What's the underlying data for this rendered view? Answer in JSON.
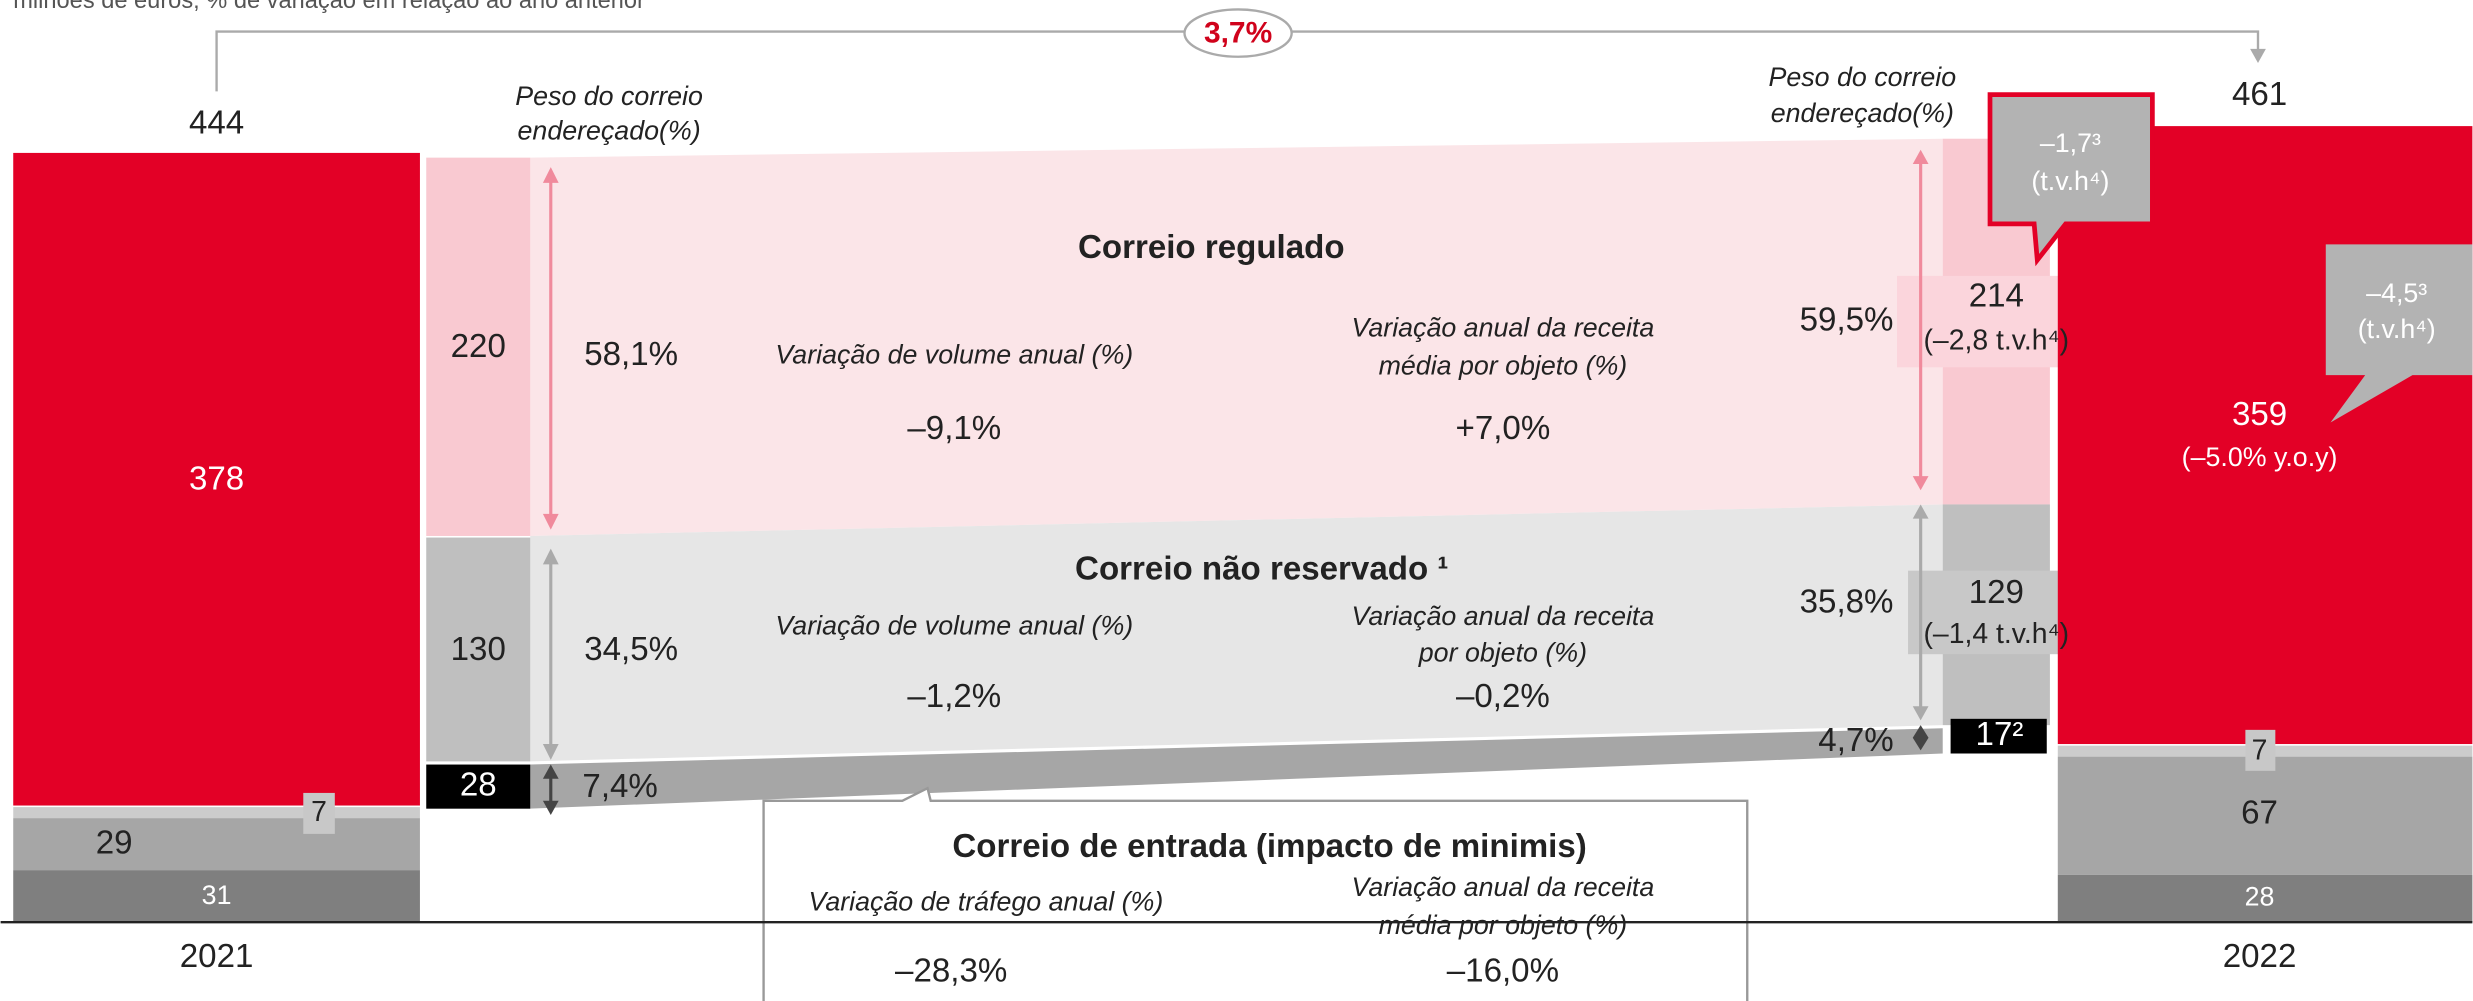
{
  "subtitle": "milhões de euros; % de variação em relação ao ano anterior",
  "growth": "3,7%",
  "weight_header": [
    "Peso do correio",
    "endereçado(%)"
  ],
  "y2021": {
    "year": "2021",
    "total": "444",
    "red": "378",
    "badge": "7",
    "gray": "29",
    "dark": "31"
  },
  "y2022": {
    "year": "2022",
    "total": "461",
    "red": "359",
    "red_note": "(–5.0% y.o.y)",
    "badge": "7",
    "gray": "67",
    "dark": "28",
    "callout_regulated": [
      "–1,7³",
      "(t.v.h⁴)"
    ],
    "callout_total": [
      "–4,5³",
      "(t.v.h⁴)"
    ]
  },
  "left": {
    "regulated": "220",
    "regulated_pct": "58,1%",
    "nonreserved": "130",
    "nonreserved_pct": "34,5%",
    "inbound": "28",
    "inbound_pct": "7,4%"
  },
  "right": {
    "regulated": "214",
    "regulated_note": "(–2,8 t.v.h⁴)",
    "regulated_pct": "59,5%",
    "nonreserved": "129",
    "nonreserved_note": "(–1,4 t.v.h⁴)",
    "nonreserved_pct": "35,8%",
    "inbound": "17²",
    "inbound_pct": "4,7%"
  },
  "regulated": {
    "title": "Correio regulado",
    "volume_label": "Variação de volume anual (%)",
    "volume": "–9,1%",
    "revenue_label": [
      "Variação anual da receita",
      "média por objeto (%)"
    ],
    "revenue": "+7,0%"
  },
  "nonreserved": {
    "title": "Correio não reservado ¹",
    "volume_label": "Variação de volume anual (%)",
    "volume": "–1,2%",
    "revenue_label": [
      "Variação anual da receita",
      "por objeto (%)"
    ],
    "revenue": "–0,2%"
  },
  "inbound": {
    "title": "Correio de entrada (impacto de minimis)",
    "traffic_label": "Variação de tráfego anual (%)",
    "traffic": "–28,3%",
    "revenue_label": [
      "Variação anual da receita",
      "média por objeto (%)"
    ],
    "revenue": "–16,0%"
  }
}
